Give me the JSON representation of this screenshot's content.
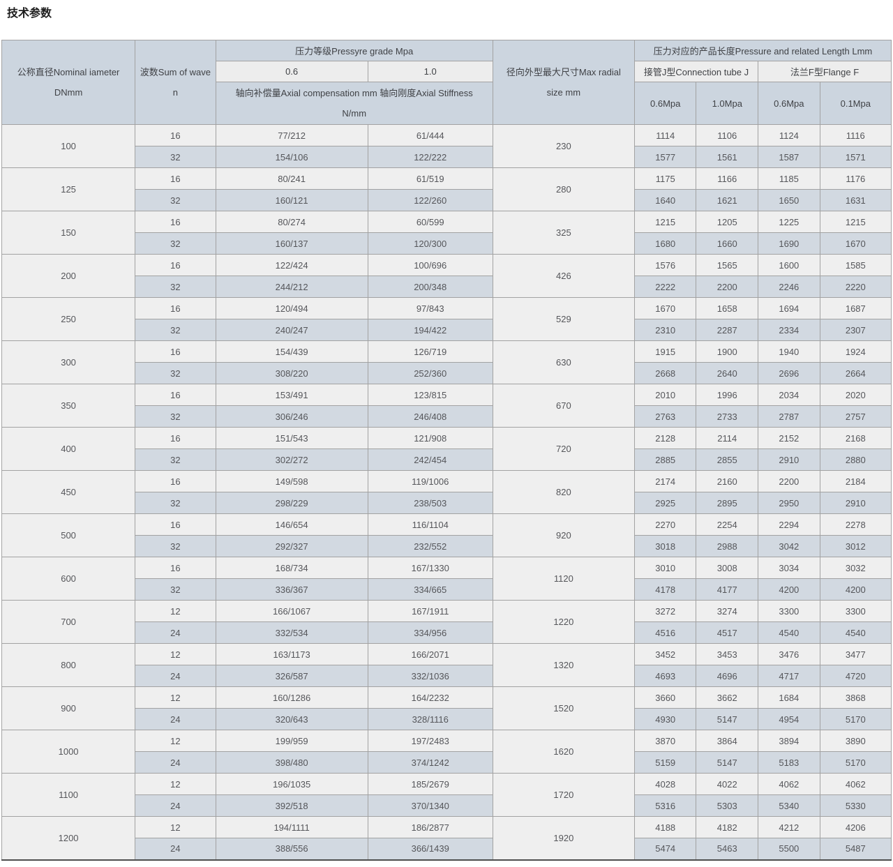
{
  "page": {
    "title": "技术参数"
  },
  "colors": {
    "header_blue": "#ccd5df",
    "header_light": "#ededed",
    "row_light": "#efefef",
    "row_blue": "#d2d9e1",
    "border": "#a2a2a2"
  },
  "table": {
    "header": {
      "dn": [
        "公称直径Nominal iameter",
        "DNmm"
      ],
      "wave": [
        "波数Sum of wave",
        "n"
      ],
      "pressure_grade": "压力等级Pressyre grade Mpa",
      "grade_06": "0.6",
      "grade_10": "1.0",
      "axial_note": [
        "轴向补偿量Axial compensation mm 轴向刚度Axial Stiffness",
        "N/mm"
      ],
      "radial": [
        "径向外型最大尺寸Max radial",
        "size mm"
      ],
      "length_group": "压力对应的产品长度Pressure and related Length Lmm",
      "tube_j": "接管J型Connection tube J",
      "flange_f": "法兰F型Flange F",
      "j_06": "0.6Mpa",
      "j_10": "1.0Mpa",
      "f_06": "0.6Mpa",
      "f_01": "0.1Mpa"
    },
    "groups": [
      {
        "dn": "100",
        "radial": "230",
        "rows": [
          {
            "n": "16",
            "c06": "77/212",
            "c10": "61/444",
            "j06": "1114",
            "j10": "1106",
            "f06": "1124",
            "f01": "1116"
          },
          {
            "n": "32",
            "c06": "154/106",
            "c10": "122/222",
            "j06": "1577",
            "j10": "1561",
            "f06": "1587",
            "f01": "1571"
          }
        ]
      },
      {
        "dn": "125",
        "radial": "280",
        "rows": [
          {
            "n": "16",
            "c06": "80/241",
            "c10": "61/519",
            "j06": "1175",
            "j10": "1166",
            "f06": "1185",
            "f01": "1176"
          },
          {
            "n": "32",
            "c06": "160/121",
            "c10": "122/260",
            "j06": "1640",
            "j10": "1621",
            "f06": "1650",
            "f01": "1631"
          }
        ]
      },
      {
        "dn": "150",
        "radial": "325",
        "rows": [
          {
            "n": "16",
            "c06": "80/274",
            "c10": "60/599",
            "j06": "1215",
            "j10": "1205",
            "f06": "1225",
            "f01": "1215"
          },
          {
            "n": "32",
            "c06": "160/137",
            "c10": "120/300",
            "j06": "1680",
            "j10": "1660",
            "f06": "1690",
            "f01": "1670"
          }
        ]
      },
      {
        "dn": "200",
        "radial": "426",
        "rows": [
          {
            "n": "16",
            "c06": "122/424",
            "c10": "100/696",
            "j06": "1576",
            "j10": "1565",
            "f06": "1600",
            "f01": "1585"
          },
          {
            "n": "32",
            "c06": "244/212",
            "c10": "200/348",
            "j06": "2222",
            "j10": "2200",
            "f06": "2246",
            "f01": "2220"
          }
        ]
      },
      {
        "dn": "250",
        "radial": "529",
        "rows": [
          {
            "n": "16",
            "c06": "120/494",
            "c10": "97/843",
            "j06": "1670",
            "j10": "1658",
            "f06": "1694",
            "f01": "1687"
          },
          {
            "n": "32",
            "c06": "240/247",
            "c10": "194/422",
            "j06": "2310",
            "j10": "2287",
            "f06": "2334",
            "f01": "2307"
          }
        ]
      },
      {
        "dn": "300",
        "radial": "630",
        "rows": [
          {
            "n": "16",
            "c06": "154/439",
            "c10": "126/719",
            "j06": "1915",
            "j10": "1900",
            "f06": "1940",
            "f01": "1924"
          },
          {
            "n": "32",
            "c06": "308/220",
            "c10": "252/360",
            "j06": "2668",
            "j10": "2640",
            "f06": "2696",
            "f01": "2664"
          }
        ]
      },
      {
        "dn": "350",
        "radial": "670",
        "rows": [
          {
            "n": "16",
            "c06": "153/491",
            "c10": "123/815",
            "j06": "2010",
            "j10": "1996",
            "f06": "2034",
            "f01": "2020"
          },
          {
            "n": "32",
            "c06": "306/246",
            "c10": "246/408",
            "j06": "2763",
            "j10": "2733",
            "f06": "2787",
            "f01": "2757"
          }
        ]
      },
      {
        "dn": "400",
        "radial": "720",
        "rows": [
          {
            "n": "16",
            "c06": "151/543",
            "c10": "121/908",
            "j06": "2128",
            "j10": "2114",
            "f06": "2152",
            "f01": "2168"
          },
          {
            "n": "32",
            "c06": "302/272",
            "c10": "242/454",
            "j06": "2885",
            "j10": "2855",
            "f06": "2910",
            "f01": "2880"
          }
        ]
      },
      {
        "dn": "450",
        "radial": "820",
        "rows": [
          {
            "n": "16",
            "c06": "149/598",
            "c10": "119/1006",
            "j06": "2174",
            "j10": "2160",
            "f06": "2200",
            "f01": "2184"
          },
          {
            "n": "32",
            "c06": "298/229",
            "c10": "238/503",
            "j06": "2925",
            "j10": "2895",
            "f06": "2950",
            "f01": "2910"
          }
        ]
      },
      {
        "dn": "500",
        "radial": "920",
        "rows": [
          {
            "n": "16",
            "c06": "146/654",
            "c10": "116/1104",
            "j06": "2270",
            "j10": "2254",
            "f06": "2294",
            "f01": "2278"
          },
          {
            "n": "32",
            "c06": "292/327",
            "c10": "232/552",
            "j06": "3018",
            "j10": "2988",
            "f06": "3042",
            "f01": "3012"
          }
        ]
      },
      {
        "dn": "600",
        "radial": "1120",
        "rows": [
          {
            "n": "16",
            "c06": "168/734",
            "c10": "167/1330",
            "j06": "3010",
            "j10": "3008",
            "f06": "3034",
            "f01": "3032"
          },
          {
            "n": "32",
            "c06": "336/367",
            "c10": "334/665",
            "j06": "4178",
            "j10": "4177",
            "f06": "4200",
            "f01": "4200"
          }
        ]
      },
      {
        "dn": "700",
        "radial": "1220",
        "rows": [
          {
            "n": "12",
            "c06": "166/1067",
            "c10": "167/1911",
            "j06": "3272",
            "j10": "3274",
            "f06": "3300",
            "f01": "3300"
          },
          {
            "n": "24",
            "c06": "332/534",
            "c10": "334/956",
            "j06": "4516",
            "j10": "4517",
            "f06": "4540",
            "f01": "4540"
          }
        ]
      },
      {
        "dn": "800",
        "radial": "1320",
        "rows": [
          {
            "n": "12",
            "c06": "163/1173",
            "c10": "166/2071",
            "j06": "3452",
            "j10": "3453",
            "f06": "3476",
            "f01": "3477"
          },
          {
            "n": "24",
            "c06": "326/587",
            "c10": "332/1036",
            "j06": "4693",
            "j10": "4696",
            "f06": "4717",
            "f01": "4720"
          }
        ]
      },
      {
        "dn": "900",
        "radial": "1520",
        "rows": [
          {
            "n": "12",
            "c06": "160/1286",
            "c10": "164/2232",
            "j06": "3660",
            "j10": "3662",
            "f06": "1684",
            "f01": "3868"
          },
          {
            "n": "24",
            "c06": "320/643",
            "c10": "328/1116",
            "j06": "4930",
            "j10": "5147",
            "f06": "4954",
            "f01": "5170"
          }
        ]
      },
      {
        "dn": "1000",
        "radial": "1620",
        "rows": [
          {
            "n": "12",
            "c06": "199/959",
            "c10": "197/2483",
            "j06": "3870",
            "j10": "3864",
            "f06": "3894",
            "f01": "3890"
          },
          {
            "n": "24",
            "c06": "398/480",
            "c10": "374/1242",
            "j06": "5159",
            "j10": "5147",
            "f06": "5183",
            "f01": "5170"
          }
        ]
      },
      {
        "dn": "1100",
        "radial": "1720",
        "rows": [
          {
            "n": "12",
            "c06": "196/1035",
            "c10": "185/2679",
            "j06": "4028",
            "j10": "4022",
            "f06": "4062",
            "f01": "4062"
          },
          {
            "n": "24",
            "c06": "392/518",
            "c10": "370/1340",
            "j06": "5316",
            "j10": "5303",
            "f06": "5340",
            "f01": "5330"
          }
        ]
      },
      {
        "dn": "1200",
        "radial": "1920",
        "rows": [
          {
            "n": "12",
            "c06": "194/1111",
            "c10": "186/2877",
            "j06": "4188",
            "j10": "4182",
            "f06": "4212",
            "f01": "4206"
          },
          {
            "n": "24",
            "c06": "388/556",
            "c10": "366/1439",
            "j06": "5474",
            "j10": "5463",
            "f06": "5500",
            "f01": "5487"
          }
        ]
      }
    ]
  }
}
